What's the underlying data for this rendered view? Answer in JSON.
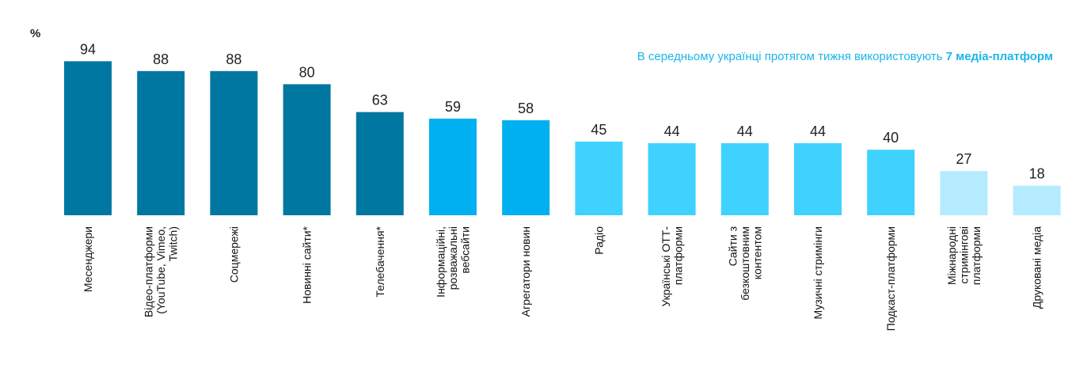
{
  "chart_data": {
    "type": "bar",
    "unit_label": "%",
    "headline": {
      "prefix": "В середньому українці протягом тижня використовують ",
      "emphasis": "7 медіа-платформ"
    },
    "categories": [
      [
        "Месенджери"
      ],
      [
        "Відео-платформи",
        "(YouTube, Vimeo,",
        "Twitch)"
      ],
      [
        "Соцмережі"
      ],
      [
        "Новинні сайти*"
      ],
      [
        "Телебачення*"
      ],
      [
        "Інформаційні,",
        "розважальні",
        "вебсайти"
      ],
      [
        "Агрегатори новин"
      ],
      [
        "Радіо"
      ],
      [
        "Українські ОТТ-",
        "платформи"
      ],
      [
        "Сайти з",
        "безкоштовним",
        "контентом"
      ],
      [
        "Музичні стримінги"
      ],
      [
        "Подкаст-платформи"
      ],
      [
        "Міжнародні",
        "стримінгові",
        "платформи"
      ],
      [
        "Друковані медіа"
      ]
    ],
    "values": [
      94,
      88,
      88,
      80,
      63,
      59,
      58,
      45,
      44,
      44,
      44,
      40,
      27,
      18
    ],
    "colors": [
      "#0077a0",
      "#0077a0",
      "#0077a0",
      "#0077a0",
      "#0077a0",
      "#00b0f0",
      "#00b0f0",
      "#3fd2ff",
      "#3fd2ff",
      "#3fd2ff",
      "#3fd2ff",
      "#3fd2ff",
      "#b5ebff",
      "#b5ebff"
    ],
    "ylim": [
      0,
      100
    ],
    "grid": false,
    "legend": "none"
  }
}
